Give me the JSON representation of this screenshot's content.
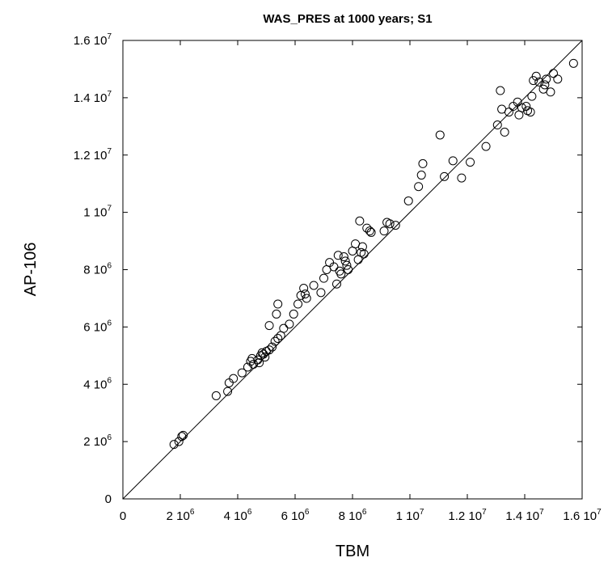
{
  "chart_data": {
    "type": "scatter",
    "title": "WAS_PRES at 1000 years; S1",
    "xlabel": "TBM",
    "ylabel": "AP-106",
    "xlim": [
      0,
      16000000
    ],
    "ylim": [
      0,
      16000000
    ],
    "x_ticks": [
      {
        "value": 0,
        "mant": "0",
        "exp": ""
      },
      {
        "value": 2000000,
        "mant": "2 10",
        "exp": "6"
      },
      {
        "value": 4000000,
        "mant": "4 10",
        "exp": "6"
      },
      {
        "value": 6000000,
        "mant": "6 10",
        "exp": "6"
      },
      {
        "value": 8000000,
        "mant": "8 10",
        "exp": "6"
      },
      {
        "value": 10000000,
        "mant": "1 10",
        "exp": "7"
      },
      {
        "value": 12000000,
        "mant": "1.2 10",
        "exp": "7"
      },
      {
        "value": 14000000,
        "mant": "1.4 10",
        "exp": "7"
      },
      {
        "value": 16000000,
        "mant": "1.6 10",
        "exp": "7"
      }
    ],
    "y_ticks": [
      {
        "value": 0,
        "mant": "0",
        "exp": ""
      },
      {
        "value": 2000000,
        "mant": "2 10",
        "exp": "6"
      },
      {
        "value": 4000000,
        "mant": "4 10",
        "exp": "6"
      },
      {
        "value": 6000000,
        "mant": "6 10",
        "exp": "6"
      },
      {
        "value": 8000000,
        "mant": "8 10",
        "exp": "6"
      },
      {
        "value": 10000000,
        "mant": "1 10",
        "exp": "7"
      },
      {
        "value": 12000000,
        "mant": "1.2 10",
        "exp": "7"
      },
      {
        "value": 14000000,
        "mant": "1.4 10",
        "exp": "7"
      },
      {
        "value": 16000000,
        "mant": "1.6 10",
        "exp": "7"
      }
    ],
    "reference_line": {
      "from": [
        0,
        0
      ],
      "to": [
        16000000,
        16000000
      ]
    },
    "grid": false,
    "marker": "open-circle",
    "points": [
      [
        1780000,
        1900000
      ],
      [
        1950000,
        2000000
      ],
      [
        2050000,
        2180000
      ],
      [
        2100000,
        2220000
      ],
      [
        3250000,
        3600000
      ],
      [
        3650000,
        3750000
      ],
      [
        3700000,
        4050000
      ],
      [
        3850000,
        4200000
      ],
      [
        4150000,
        4400000
      ],
      [
        4350000,
        4600000
      ],
      [
        4450000,
        4800000
      ],
      [
        4500000,
        4900000
      ],
      [
        4550000,
        4700000
      ],
      [
        4700000,
        4850000
      ],
      [
        4750000,
        4750000
      ],
      [
        4800000,
        5000000
      ],
      [
        4850000,
        5100000
      ],
      [
        4900000,
        5050000
      ],
      [
        4950000,
        4950000
      ],
      [
        5000000,
        5150000
      ],
      [
        5100000,
        5200000
      ],
      [
        5100000,
        6050000
      ],
      [
        5200000,
        5300000
      ],
      [
        5300000,
        5500000
      ],
      [
        5350000,
        6450000
      ],
      [
        5400000,
        6800000
      ],
      [
        5400000,
        5600000
      ],
      [
        5500000,
        5700000
      ],
      [
        5600000,
        5950000
      ],
      [
        5800000,
        6100000
      ],
      [
        5950000,
        6450000
      ],
      [
        6100000,
        6800000
      ],
      [
        6200000,
        7100000
      ],
      [
        6300000,
        7350000
      ],
      [
        6350000,
        7150000
      ],
      [
        6400000,
        7000000
      ],
      [
        6650000,
        7450000
      ],
      [
        6900000,
        7200000
      ],
      [
        7000000,
        7700000
      ],
      [
        7100000,
        8000000
      ],
      [
        7200000,
        8250000
      ],
      [
        7350000,
        8100000
      ],
      [
        7450000,
        7500000
      ],
      [
        7500000,
        8500000
      ],
      [
        7550000,
        7950000
      ],
      [
        7600000,
        7850000
      ],
      [
        7700000,
        8450000
      ],
      [
        7750000,
        8300000
      ],
      [
        7800000,
        8150000
      ],
      [
        7850000,
        8000000
      ],
      [
        8000000,
        8650000
      ],
      [
        8100000,
        8900000
      ],
      [
        8200000,
        8350000
      ],
      [
        8250000,
        9700000
      ],
      [
        8300000,
        8600000
      ],
      [
        8350000,
        8800000
      ],
      [
        8400000,
        8550000
      ],
      [
        8500000,
        9450000
      ],
      [
        8600000,
        9350000
      ],
      [
        8650000,
        9300000
      ],
      [
        9100000,
        9350000
      ],
      [
        9200000,
        9650000
      ],
      [
        9300000,
        9600000
      ],
      [
        9500000,
        9550000
      ],
      [
        9950000,
        10400000
      ],
      [
        10300000,
        10900000
      ],
      [
        10400000,
        11300000
      ],
      [
        10450000,
        11700000
      ],
      [
        11050000,
        12700000
      ],
      [
        11200000,
        11250000
      ],
      [
        11500000,
        11800000
      ],
      [
        11800000,
        11200000
      ],
      [
        12100000,
        11750000
      ],
      [
        12650000,
        12300000
      ],
      [
        13050000,
        13050000
      ],
      [
        13150000,
        14250000
      ],
      [
        13200000,
        13600000
      ],
      [
        13300000,
        12800000
      ],
      [
        13450000,
        13500000
      ],
      [
        13600000,
        13700000
      ],
      [
        13750000,
        13850000
      ],
      [
        13800000,
        13400000
      ],
      [
        13900000,
        13650000
      ],
      [
        14050000,
        13700000
      ],
      [
        14100000,
        13550000
      ],
      [
        14200000,
        13500000
      ],
      [
        14250000,
        14050000
      ],
      [
        14300000,
        14600000
      ],
      [
        14400000,
        14750000
      ],
      [
        14500000,
        14550000
      ],
      [
        14650000,
        14300000
      ],
      [
        14700000,
        14450000
      ],
      [
        14750000,
        14650000
      ],
      [
        14900000,
        14200000
      ],
      [
        15000000,
        14850000
      ],
      [
        15150000,
        14650000
      ],
      [
        15700000,
        15200000
      ]
    ]
  }
}
